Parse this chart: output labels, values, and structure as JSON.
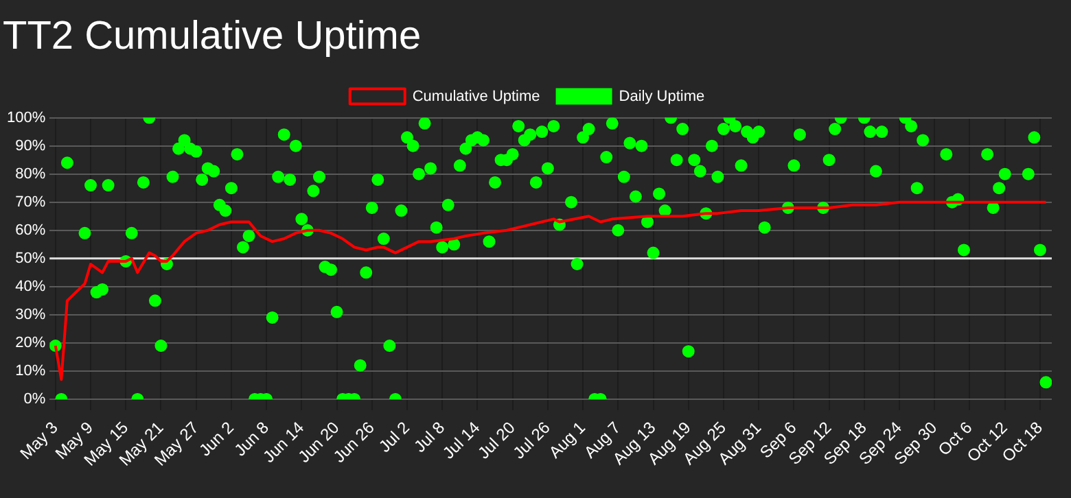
{
  "chart_data": {
    "type": "scatter",
    "title": "TT2 Cumulative Uptime",
    "legend": "top",
    "grid": true,
    "marker": "circle",
    "xlim": [
      "--05-02",
      "--10-20"
    ],
    "xticks": [
      {
        "value": "--05-03",
        "label": "May 3"
      },
      {
        "value": "--05-09",
        "label": "May 9"
      },
      {
        "value": "--05-15",
        "label": "May 15"
      },
      {
        "value": "--05-21",
        "label": "May 21"
      },
      {
        "value": "--05-27",
        "label": "May 27"
      },
      {
        "value": "--06-02",
        "label": "Jun 2"
      },
      {
        "value": "--06-08",
        "label": "Jun 8"
      },
      {
        "value": "--06-14",
        "label": "Jun 14"
      },
      {
        "value": "--06-20",
        "label": "Jun 20"
      },
      {
        "value": "--06-26",
        "label": "Jun 26"
      },
      {
        "value": "--07-02",
        "label": "Jul 2"
      },
      {
        "value": "--07-08",
        "label": "Jul 8"
      },
      {
        "value": "--07-14",
        "label": "Jul 14"
      },
      {
        "value": "--07-20",
        "label": "Jul 20"
      },
      {
        "value": "--07-26",
        "label": "Jul 26"
      },
      {
        "value": "--08-01",
        "label": "Aug 1"
      },
      {
        "value": "--08-07",
        "label": "Aug 7"
      },
      {
        "value": "--08-13",
        "label": "Aug 13"
      },
      {
        "value": "--08-19",
        "label": "Aug 19"
      },
      {
        "value": "--08-25",
        "label": "Aug 25"
      },
      {
        "value": "--08-31",
        "label": "Aug 31"
      },
      {
        "value": "--09-06",
        "label": "Sep 6"
      },
      {
        "value": "--09-12",
        "label": "Sep 12"
      },
      {
        "value": "--09-18",
        "label": "Sep 18"
      },
      {
        "value": "--09-24",
        "label": "Sep 24"
      },
      {
        "value": "--09-30",
        "label": "Sep 30"
      },
      {
        "value": "--10-06",
        "label": "Oct 6"
      },
      {
        "value": "--10-12",
        "label": "Oct 12"
      },
      {
        "value": "--10-18",
        "label": "Oct 18"
      }
    ],
    "ylim": [
      0,
      100
    ],
    "yticks": [
      {
        "value": 0,
        "label": "0%"
      },
      {
        "value": 10,
        "label": "10%"
      },
      {
        "value": 20,
        "label": "20%"
      },
      {
        "value": 30,
        "label": "30%"
      },
      {
        "value": 40,
        "label": "40%"
      },
      {
        "value": 50,
        "label": "50%"
      },
      {
        "value": 60,
        "label": "60%"
      },
      {
        "value": 70,
        "label": "70%"
      },
      {
        "value": 80,
        "label": "80%"
      },
      {
        "value": 90,
        "label": "90%"
      },
      {
        "value": 100,
        "label": "100%"
      }
    ],
    "ref_lines": [
      {
        "axis": "y",
        "value": 50,
        "color": "#e0e0e0"
      }
    ],
    "series": [
      {
        "name": "Cumulative Uptime",
        "type": "line",
        "marker": "none",
        "color": "#ff0000",
        "x": [
          "--05-03",
          "--05-04",
          "--05-05",
          "--05-08",
          "--05-09",
          "--05-11",
          "--05-12",
          "--05-15",
          "--05-16",
          "--05-17",
          "--05-19",
          "--05-20",
          "--05-21",
          "--05-22",
          "--05-23",
          "--05-25",
          "--05-27",
          "--05-29",
          "--05-31",
          "--06-02",
          "--06-03",
          "--06-05",
          "--06-07",
          "--06-09",
          "--06-11",
          "--06-13",
          "--06-15",
          "--06-17",
          "--06-19",
          "--06-21",
          "--06-23",
          "--06-25",
          "--06-27",
          "--06-28",
          "--06-30",
          "--07-02",
          "--07-04",
          "--07-06",
          "--07-10",
          "--07-12",
          "--07-15",
          "--07-19",
          "--07-23",
          "--07-27",
          "--07-28",
          "--08-02",
          "--08-04",
          "--08-06",
          "--08-12",
          "--08-18",
          "--08-22",
          "--08-24",
          "--08-28",
          "--08-31",
          "--09-05",
          "--09-08",
          "--09-12",
          "--09-16",
          "--09-20",
          "--09-24",
          "--09-28",
          "--10-06",
          "--10-14",
          "--10-17",
          "--10-19"
        ],
        "values": [
          19,
          7,
          35,
          41,
          48,
          45,
          49,
          49,
          50,
          45,
          52,
          51,
          49,
          49,
          51,
          56,
          59,
          60,
          62,
          63,
          63,
          63,
          58,
          56,
          57,
          59,
          60,
          60,
          59,
          57,
          54,
          53,
          54,
          54,
          52,
          54,
          56,
          56,
          57,
          58,
          59,
          60,
          62,
          64,
          63,
          65,
          63,
          64,
          65,
          65,
          66,
          66,
          67,
          67,
          68,
          68,
          68,
          69,
          69,
          70,
          70,
          70,
          70,
          70,
          70
        ]
      },
      {
        "name": "Daily Uptime",
        "type": "scatter",
        "color": "#00ff00",
        "x": [
          "--05-03",
          "--05-04",
          "--05-05",
          "--05-08",
          "--05-09",
          "--05-10",
          "--05-11",
          "--05-12",
          "--05-15",
          "--05-16",
          "--05-17",
          "--05-18",
          "--05-19",
          "--05-20",
          "--05-21",
          "--05-22",
          "--05-23",
          "--05-24",
          "--05-25",
          "--05-26",
          "--05-27",
          "--05-28",
          "--05-29",
          "--05-30",
          "--05-31",
          "--06-01",
          "--06-02",
          "--06-03",
          "--06-04",
          "--06-05",
          "--06-06",
          "--06-07",
          "--06-08",
          "--06-09",
          "--06-10",
          "--06-11",
          "--06-12",
          "--06-13",
          "--06-14",
          "--06-15",
          "--06-16",
          "--06-17",
          "--06-18",
          "--06-19",
          "--06-20",
          "--06-21",
          "--06-22",
          "--06-23",
          "--06-24",
          "--06-25",
          "--06-26",
          "--06-27",
          "--06-28",
          "--06-29",
          "--06-30",
          "--07-01",
          "--07-02",
          "--07-03",
          "--07-04",
          "--07-05",
          "--07-06",
          "--07-07",
          "--07-08",
          "--07-09",
          "--07-10",
          "--07-11",
          "--07-12",
          "--07-13",
          "--07-14",
          "--07-15",
          "--07-16",
          "--07-17",
          "--07-18",
          "--07-19",
          "--07-20",
          "--07-21",
          "--07-22",
          "--07-23",
          "--07-24",
          "--07-25",
          "--07-26",
          "--07-27",
          "--07-28",
          "--07-30",
          "--07-31",
          "--08-01",
          "--08-02",
          "--08-03",
          "--08-04",
          "--08-05",
          "--08-06",
          "--08-07",
          "--08-08",
          "--08-09",
          "--08-10",
          "--08-11",
          "--08-12",
          "--08-13",
          "--08-14",
          "--08-15",
          "--08-16",
          "--08-17",
          "--08-18",
          "--08-19",
          "--08-20",
          "--08-21",
          "--08-22",
          "--08-23",
          "--08-24",
          "--08-25",
          "--08-26",
          "--08-27",
          "--08-28",
          "--08-29",
          "--08-30",
          "--08-31",
          "--09-01",
          "--09-05",
          "--09-06",
          "--09-07",
          "--09-11",
          "--09-12",
          "--09-13",
          "--09-14",
          "--09-18",
          "--09-19",
          "--09-20",
          "--09-21",
          "--09-25",
          "--09-26",
          "--09-27",
          "--09-28",
          "--10-02",
          "--10-03",
          "--10-04",
          "--10-05",
          "--10-09",
          "--10-10",
          "--10-11",
          "--10-12",
          "--10-16",
          "--10-17",
          "--10-18",
          "--10-19"
        ],
        "values": [
          19,
          0,
          84,
          59,
          76,
          38,
          39,
          76,
          49,
          59,
          0,
          77,
          100,
          35,
          19,
          48,
          79,
          89,
          92,
          89,
          88,
          78,
          82,
          81,
          69,
          67,
          75,
          87,
          54,
          58,
          0,
          0,
          0,
          29,
          79,
          94,
          78,
          90,
          64,
          60,
          74,
          79,
          47,
          46,
          31,
          0,
          0,
          0,
          12,
          45,
          68,
          78,
          57,
          19,
          0,
          67,
          93,
          90,
          80,
          98,
          82,
          61,
          54,
          69,
          55,
          83,
          89,
          92,
          93,
          92,
          56,
          77,
          85,
          85,
          87,
          97,
          92,
          94,
          77,
          95,
          82,
          97,
          62,
          70,
          48,
          93,
          96,
          0,
          0,
          86,
          98,
          60,
          79,
          91,
          72,
          90,
          63,
          52,
          73,
          67,
          100,
          85,
          96,
          17,
          85,
          81,
          66,
          90,
          79,
          96,
          100,
          97,
          83,
          95,
          93,
          95,
          61,
          68,
          83,
          94,
          68,
          85,
          96,
          100,
          100,
          95,
          81,
          95,
          100,
          97,
          75,
          92,
          87,
          70,
          71,
          53,
          87,
          68,
          75,
          80,
          80,
          93,
          53,
          6
        ]
      }
    ]
  }
}
